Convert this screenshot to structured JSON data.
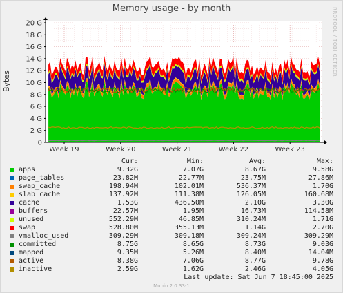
{
  "title": "Memory usage - by month",
  "side_label": "RRDTOOL / TOBI OETIKER",
  "footer": {
    "last_update": "Last update:  Sat Jun  7 18:45:00 2025",
    "version": "Munin 2.0.33-1"
  },
  "legend_headers": {
    "cur": "Cur:",
    "min": "Min:",
    "avg": "Avg:",
    "max": "Max:"
  },
  "legend": [
    {
      "name": "apps",
      "color": "#00cc00",
      "cur": "9.32G",
      "min": "7.07G",
      "avg": "8.67G",
      "max": "9.58G"
    },
    {
      "name": "page_tables",
      "color": "#0066b3",
      "cur": "23.82M",
      "min": "22.77M",
      "avg": "23.75M",
      "max": "27.86M"
    },
    {
      "name": "swap_cache",
      "color": "#ff8000",
      "cur": "198.94M",
      "min": "102.01M",
      "avg": "536.37M",
      "max": "1.70G"
    },
    {
      "name": "slab_cache",
      "color": "#ffcc00",
      "cur": "137.92M",
      "min": "111.38M",
      "avg": "126.05M",
      "max": "160.68M"
    },
    {
      "name": "cache",
      "color": "#330099",
      "cur": "1.53G",
      "min": "436.50M",
      "avg": "2.10G",
      "max": "3.30G"
    },
    {
      "name": "buffers",
      "color": "#990099",
      "cur": "22.57M",
      "min": "1.95M",
      "avg": "16.73M",
      "max": "114.58M"
    },
    {
      "name": "unused",
      "color": "#ccff00",
      "cur": "552.29M",
      "min": "46.85M",
      "avg": "310.24M",
      "max": "1.71G"
    },
    {
      "name": "swap",
      "color": "#ff0000",
      "cur": "528.80M",
      "min": "355.13M",
      "avg": "1.14G",
      "max": "2.70G"
    },
    {
      "name": "vmalloc_used",
      "color": "#808080",
      "cur": "309.29M",
      "min": "309.18M",
      "avg": "309.24M",
      "max": "309.29M"
    },
    {
      "name": "committed",
      "color": "#008f00",
      "cur": "8.75G",
      "min": "8.65G",
      "avg": "8.73G",
      "max": "9.03G"
    },
    {
      "name": "mapped",
      "color": "#00487d",
      "cur": "9.35M",
      "min": "5.26M",
      "avg": "8.40M",
      "max": "14.04M"
    },
    {
      "name": "active",
      "color": "#b35a00",
      "cur": "8.38G",
      "min": "7.06G",
      "avg": "8.77G",
      "max": "9.78G"
    },
    {
      "name": "inactive",
      "color": "#b38f00",
      "cur": "2.59G",
      "min": "1.62G",
      "avg": "2.46G",
      "max": "4.05G"
    }
  ],
  "chart_data": {
    "type": "area",
    "title": "Memory usage - by month",
    "ylabel": "Bytes",
    "ylim": [
      0,
      20
    ],
    "y_unit": "G",
    "y_ticks": [
      "0",
      "2 G",
      "4 G",
      "6 G",
      "8 G",
      "10 G",
      "12 G",
      "14 G",
      "16 G",
      "18 G",
      "20 G"
    ],
    "x_ticks": [
      "Week 19",
      "Week 20",
      "Week 21",
      "Week 22",
      "Week 23"
    ],
    "x_tick_positions": [
      0.0,
      1.0,
      2.0,
      3.0,
      4.0
    ],
    "x_range": [
      -0.33,
      4.56
    ],
    "grid": true,
    "stacked_series": [
      {
        "name": "apps",
        "color": "#00cc00",
        "approx_value": 8.67
      },
      {
        "name": "page_tables",
        "color": "#0066b3",
        "approx_value": 0.02
      },
      {
        "name": "swap_cache",
        "color": "#ff8000",
        "approx_value": 0.54
      },
      {
        "name": "slab_cache",
        "color": "#ffcc00",
        "approx_value": 0.12
      },
      {
        "name": "cache",
        "color": "#330099",
        "approx_value": 2.1
      },
      {
        "name": "buffers",
        "color": "#990099",
        "approx_value": 0.02
      },
      {
        "name": "unused",
        "color": "#ccff00",
        "approx_value": 0.3
      },
      {
        "name": "swap",
        "color": "#ff0000",
        "approx_value": 1.14
      }
    ],
    "line_series": [
      {
        "name": "committed",
        "color": "#008f00",
        "approx_value": 8.73
      },
      {
        "name": "active",
        "color": "#b35a00",
        "approx_value": 8.77
      },
      {
        "name": "inactive",
        "color": "#b38f00",
        "approx_value": 2.46
      },
      {
        "name": "vmalloc_used",
        "color": "#808080",
        "approx_value": 0.31
      }
    ]
  }
}
